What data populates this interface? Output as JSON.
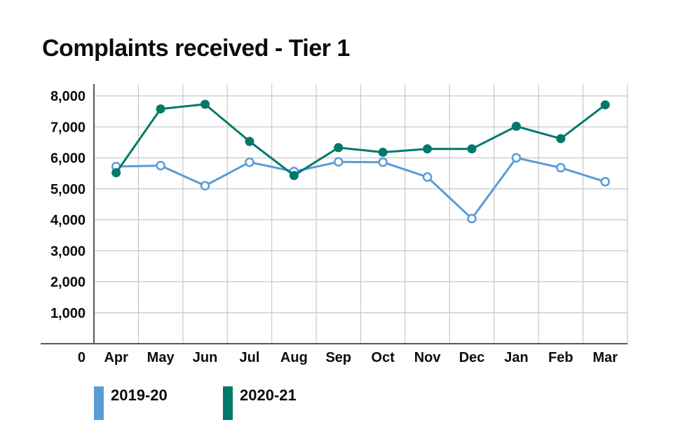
{
  "chart_data": {
    "type": "line",
    "title": "Complaints received - Tier 1",
    "categories": [
      "Apr",
      "May",
      "Jun",
      "Jul",
      "Aug",
      "Sep",
      "Oct",
      "Nov",
      "Dec",
      "Jan",
      "Feb",
      "Mar"
    ],
    "yticks": [
      "0",
      "1,000",
      "2,000",
      "3,000",
      "4,000",
      "5,000",
      "6,000",
      "7,000",
      "8,000"
    ],
    "ylim": [
      0,
      8000
    ],
    "grid": true,
    "legend_placement": "bottom-left",
    "series": [
      {
        "name": "2019-20",
        "color": "#5b9bd5",
        "marker": "hollow-circle",
        "values": [
          5720,
          5750,
          5100,
          5860,
          5560,
          5870,
          5860,
          5380,
          4040,
          6000,
          5680,
          5230
        ]
      },
      {
        "name": "2020-21",
        "color": "#00796b",
        "marker": "filled-circle",
        "values": [
          5520,
          7580,
          7730,
          6530,
          5430,
          6330,
          6180,
          6290,
          6290,
          7020,
          6620,
          7710
        ]
      }
    ]
  }
}
